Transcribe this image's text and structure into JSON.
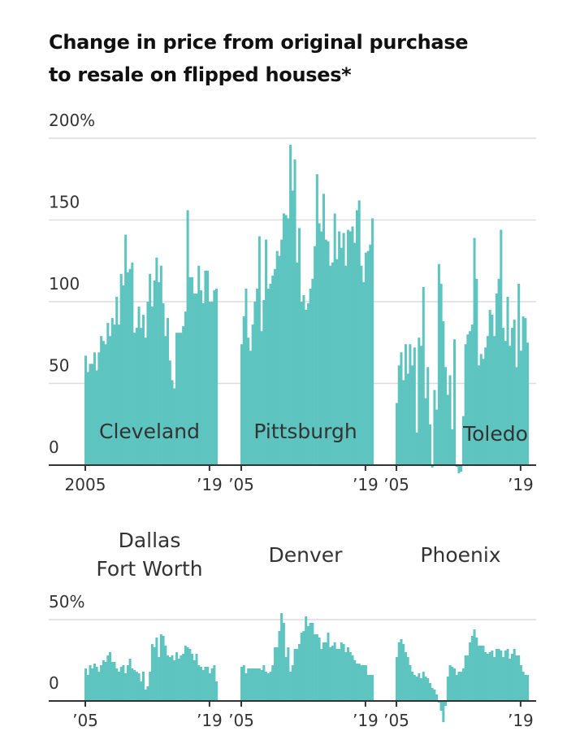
{
  "chart_data": {
    "type": "bar",
    "title_lines": [
      "Change in price from original purchase",
      "to resale on flipped houses*"
    ],
    "bar_color": "#5ec4c0",
    "grid": true,
    "x_period": "quarterly, 2005–2019",
    "panels": [
      {
        "group": "top",
        "name": "Cleveland",
        "x_tick_labels": [
          "2005",
          "’19"
        ],
        "values": [
          67,
          57,
          62,
          62,
          69,
          58,
          69,
          79,
          76,
          74,
          87,
          79,
          90,
          86,
          103,
          86,
          117,
          110,
          141,
          118,
          120,
          124,
          81,
          84,
          97,
          84,
          92,
          78,
          100,
          117,
          97,
          113,
          127,
          112,
          122,
          99,
          79,
          90,
          64,
          52,
          47,
          81,
          81,
          81,
          85,
          94,
          156,
          115,
          115,
          105,
          105,
          122,
          107,
          99,
          119,
          119,
          100,
          100,
          107,
          108
        ]
      },
      {
        "group": "top",
        "name": "Pittsburgh",
        "x_tick_labels": [
          "’05",
          "’19"
        ],
        "values": [
          74,
          91,
          108,
          78,
          70,
          86,
          100,
          108,
          140,
          82,
          101,
          138,
          108,
          111,
          116,
          120,
          131,
          128,
          138,
          154,
          153,
          151,
          196,
          168,
          187,
          124,
          145,
          100,
          104,
          95,
          99,
          108,
          114,
          134,
          178,
          148,
          143,
          166,
          138,
          137,
          122,
          124,
          154,
          126,
          143,
          133,
          142,
          122,
          144,
          143,
          146,
          136,
          156,
          162,
          122,
          112,
          130,
          131,
          135,
          151
        ]
      },
      {
        "group": "top",
        "name": "Toledo",
        "x_tick_labels": [
          "’05",
          "’19"
        ],
        "values": [
          38,
          61,
          69,
          52,
          74,
          56,
          74,
          61,
          72,
          20,
          78,
          73,
          109,
          41,
          60,
          25,
          -1.5,
          46,
          34,
          123,
          111,
          88,
          60,
          43,
          55,
          22,
          77,
          -1,
          -5,
          -4,
          30,
          74,
          80,
          82,
          86,
          139,
          114,
          61,
          68,
          65,
          72,
          79,
          95,
          92,
          79,
          105,
          114,
          144,
          84,
          76,
          103,
          73,
          84,
          89,
          60,
          111,
          70,
          91,
          90,
          75
        ]
      },
      {
        "group": "bottom",
        "name_lines": [
          "Dallas",
          "Fort Worth"
        ],
        "x_tick_labels": [
          "’05",
          "’19"
        ],
        "values": [
          20,
          16,
          22,
          20,
          23,
          21,
          18,
          22,
          25,
          24,
          28,
          30,
          24,
          24,
          20,
          18,
          21,
          22,
          17,
          22,
          26,
          20,
          19,
          18,
          17,
          12,
          18,
          7,
          9,
          18,
          35,
          33,
          39,
          27,
          41,
          40,
          34,
          28,
          27,
          28,
          25,
          30,
          26,
          28,
          29,
          34,
          33,
          32,
          29,
          25,
          29,
          22,
          21,
          19,
          21,
          21,
          17,
          20,
          22,
          12
        ]
      },
      {
        "group": "bottom",
        "name_lines": [
          "Denver"
        ],
        "x_tick_labels": [
          "’05",
          "’19"
        ],
        "values": [
          21,
          22,
          17,
          20,
          20,
          20,
          20,
          20,
          20,
          19,
          22,
          18,
          17,
          18,
          22,
          33,
          33,
          43,
          54,
          48,
          27,
          33,
          18,
          22,
          32,
          32,
          35,
          42,
          43,
          52,
          46,
          48,
          48,
          41,
          41,
          39,
          32,
          36,
          36,
          42,
          33,
          34,
          36,
          32,
          32,
          36,
          35,
          30,
          33,
          30,
          28,
          25,
          23,
          23,
          22,
          22,
          22,
          16,
          16,
          16
        ]
      },
      {
        "group": "bottom",
        "name_lines": [
          "Phoenix"
        ],
        "x_tick_labels": [
          "’05",
          "’19"
        ],
        "values": [
          27,
          36,
          38,
          35,
          30,
          27,
          22,
          18,
          16,
          15,
          17,
          14,
          18,
          15,
          14,
          11,
          8,
          7,
          4,
          -1,
          -6,
          -13,
          -3,
          15,
          22,
          21,
          20,
          16,
          18,
          18,
          20,
          28,
          28,
          36,
          40,
          44,
          39,
          34,
          34,
          34,
          30,
          29,
          30,
          31,
          27,
          32,
          32,
          31,
          27,
          31,
          32,
          26,
          29,
          32,
          28,
          28,
          22,
          18,
          16,
          16
        ]
      }
    ],
    "top_axis": {
      "ylim": [
        0,
        200
      ],
      "tick_labels": [
        "200%",
        "150",
        "100",
        "50",
        "0"
      ],
      "ticks": [
        200,
        150,
        100,
        50,
        0
      ]
    },
    "bottom_axis": {
      "ylim": [
        0,
        50
      ],
      "tick_labels": [
        "50%",
        "0"
      ],
      "ticks": [
        50,
        0
      ]
    }
  }
}
